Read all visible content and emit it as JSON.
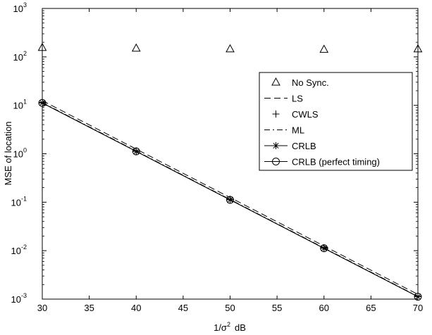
{
  "chart_data": {
    "type": "line",
    "xlabel_base": "1/σ",
    "xlabel_exp": "2",
    "xlabel_unit": "dB",
    "ylabel": "MSE of location",
    "x": [
      30,
      40,
      50,
      60,
      70
    ],
    "xlim": [
      30,
      70
    ],
    "ylim": [
      0.001,
      1000
    ],
    "yscale": "log",
    "xticks": [
      30,
      35,
      40,
      45,
      50,
      55,
      60,
      65,
      70
    ],
    "xtick_labels": [
      "30",
      "35",
      "40",
      "45",
      "50",
      "55",
      "60",
      "65",
      "70"
    ],
    "yticks": [
      {
        "value": 0.001,
        "base": "10",
        "exp": "-3"
      },
      {
        "value": 0.01,
        "base": "10",
        "exp": "-2"
      },
      {
        "value": 0.1,
        "base": "10",
        "exp": "-1"
      },
      {
        "value": 1,
        "base": "10",
        "exp": "0"
      },
      {
        "value": 10,
        "base": "10",
        "exp": "1"
      },
      {
        "value": 100,
        "base": "10",
        "exp": "2"
      },
      {
        "value": 1000,
        "base": "10",
        "exp": "3"
      }
    ],
    "legend_position": "right-middle",
    "series": [
      {
        "name": "No Sync.",
        "style": "markers",
        "marker": "triangle",
        "values": [
          155,
          150,
          145,
          142,
          145
        ]
      },
      {
        "name": "LS",
        "style": "dashed",
        "marker": "none",
        "values": [
          12.5,
          1.25,
          0.125,
          0.0125,
          0.00125
        ]
      },
      {
        "name": "CWLS",
        "style": "markers",
        "marker": "plus",
        "values": [
          11.5,
          1.15,
          0.115,
          0.0115,
          0.00115
        ]
      },
      {
        "name": "ML",
        "style": "dashdot",
        "marker": "none",
        "values": [
          11.4,
          1.14,
          0.114,
          0.0114,
          0.00114
        ]
      },
      {
        "name": "CRLB",
        "style": "solid",
        "marker": "asterisk",
        "values": [
          11.2,
          1.12,
          0.112,
          0.0112,
          0.00112
        ]
      },
      {
        "name": "CRLB (perfect timing)",
        "style": "solid",
        "marker": "circle",
        "values": [
          11.2,
          1.12,
          0.112,
          0.0112,
          0.00112
        ]
      }
    ]
  }
}
